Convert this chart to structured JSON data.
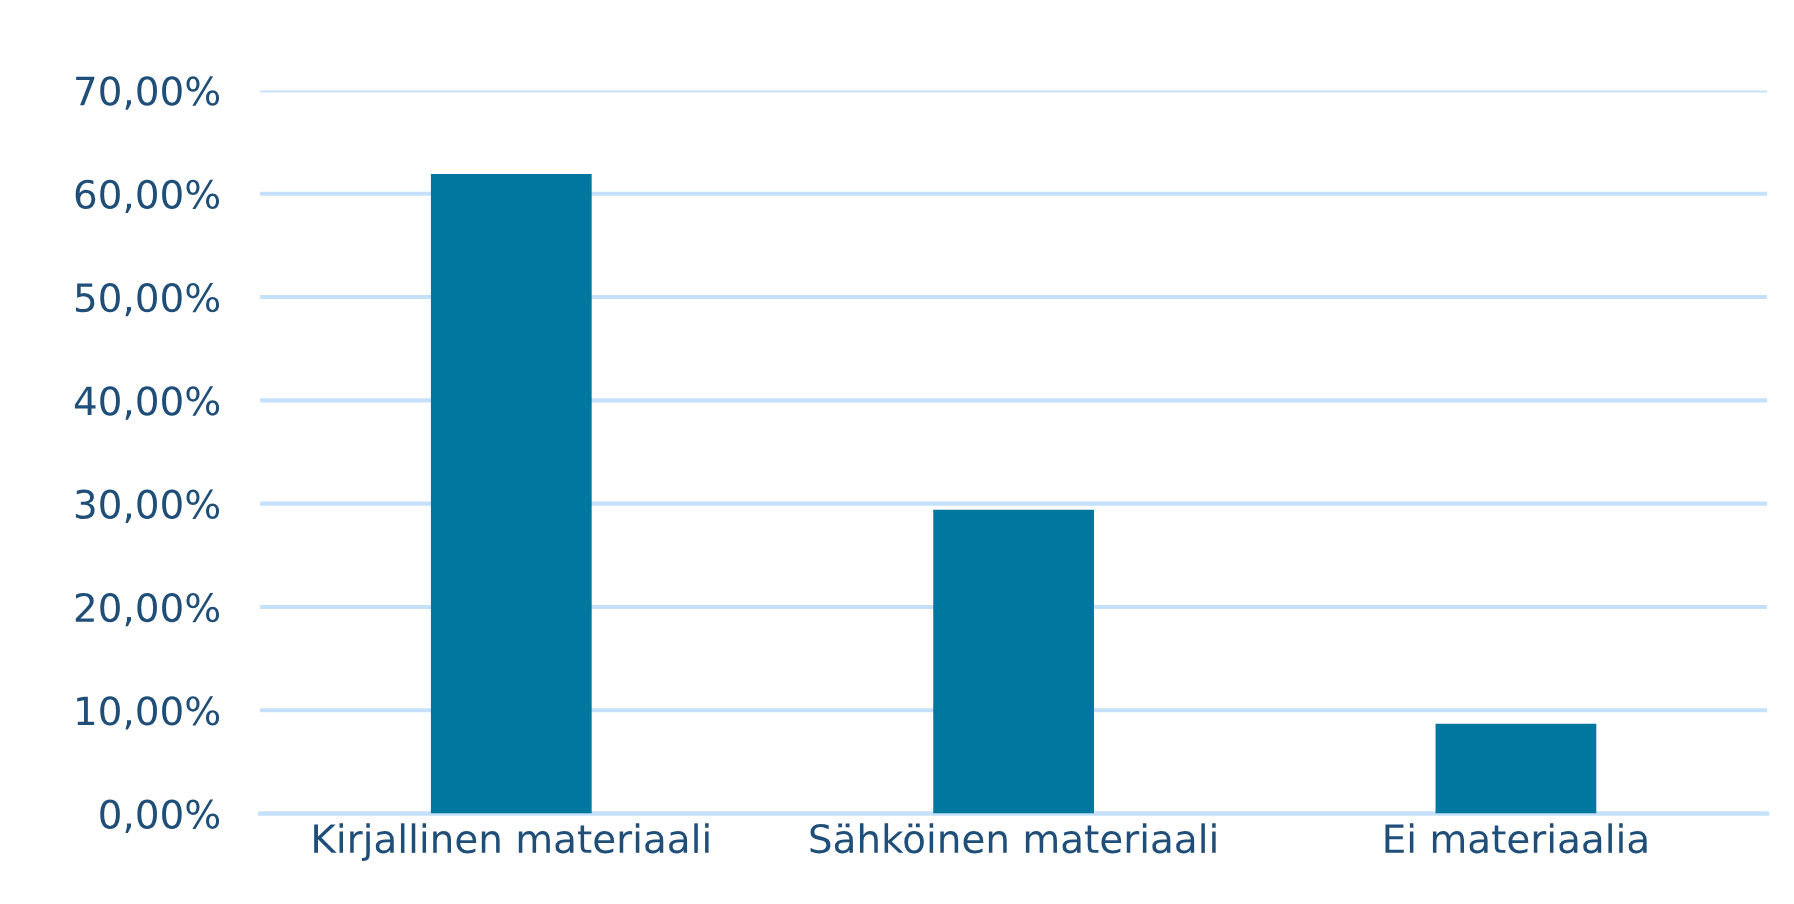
{
  "chart_data": {
    "type": "bar",
    "categories": [
      "Kirjallinen materiaali",
      "Sähköinen materiaali",
      "Ei materiaalia"
    ],
    "values": [
      61.9,
      29.4,
      8.7
    ],
    "color": "#00779f",
    "ylim": [
      0,
      70
    ],
    "yticks": [
      {
        "value": 0,
        "label": "0,00%"
      },
      {
        "value": 10,
        "label": "10,00%"
      },
      {
        "value": 20,
        "label": "20,00%"
      },
      {
        "value": 30,
        "label": "30,00%"
      },
      {
        "value": 40,
        "label": "40,00%"
      },
      {
        "value": 50,
        "label": "50,00%"
      },
      {
        "value": 60,
        "label": "60,00%"
      },
      {
        "value": 70,
        "label": "70,00%"
      }
    ],
    "grid": "y",
    "legend": false
  }
}
